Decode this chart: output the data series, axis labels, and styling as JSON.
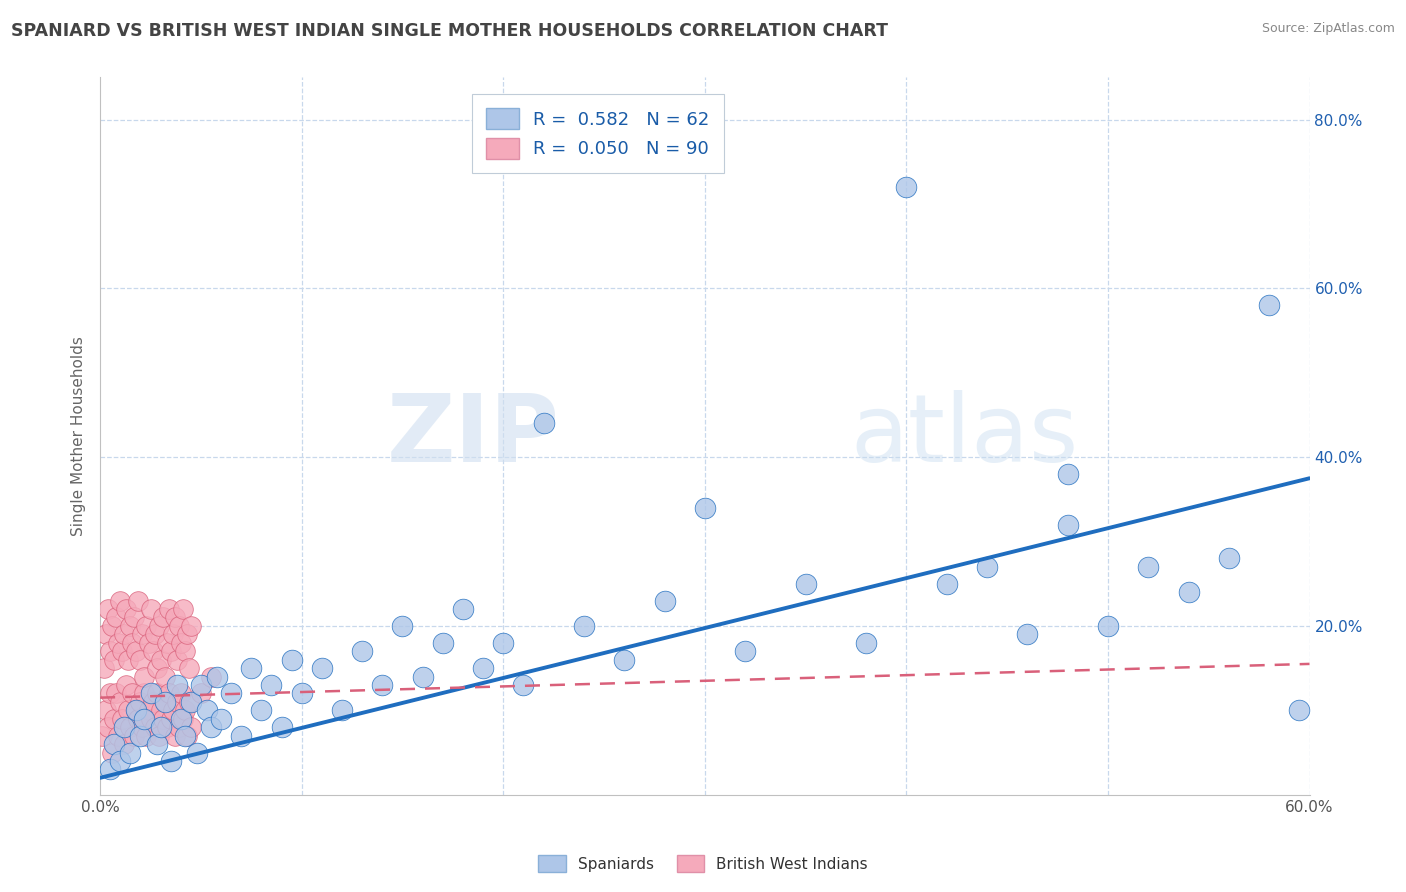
{
  "title": "SPANIARD VS BRITISH WEST INDIAN SINGLE MOTHER HOUSEHOLDS CORRELATION CHART",
  "source": "Source: ZipAtlas.com",
  "ylabel": "Single Mother Households",
  "xlim": [
    0.0,
    0.6
  ],
  "ylim": [
    0.0,
    0.85
  ],
  "legend_spaniards": "Spaniards",
  "legend_bwi": "British West Indians",
  "r_spaniard": "0.582",
  "n_spaniard": "62",
  "r_bwi": "0.050",
  "n_bwi": "90",
  "spaniard_color": "#aec6e8",
  "bwi_color": "#f5aabb",
  "spaniard_line_color": "#1f6dbf",
  "bwi_line_color": "#d9607a",
  "background_color": "#ffffff",
  "grid_color": "#c8d8ec",
  "title_color": "#444444",
  "watermark_zip": "ZIP",
  "watermark_atlas": "atlas",
  "sp_line_start_y": 0.02,
  "sp_line_end_y": 0.375,
  "bwi_line_start_y": 0.115,
  "bwi_line_end_y": 0.155,
  "sp_x": [
    0.005,
    0.007,
    0.01,
    0.012,
    0.015,
    0.018,
    0.02,
    0.022,
    0.025,
    0.028,
    0.03,
    0.032,
    0.035,
    0.038,
    0.04,
    0.042,
    0.045,
    0.048,
    0.05,
    0.053,
    0.055,
    0.058,
    0.06,
    0.065,
    0.07,
    0.075,
    0.08,
    0.085,
    0.09,
    0.095,
    0.1,
    0.11,
    0.12,
    0.13,
    0.14,
    0.15,
    0.16,
    0.17,
    0.18,
    0.19,
    0.2,
    0.21,
    0.22,
    0.24,
    0.26,
    0.28,
    0.3,
    0.32,
    0.35,
    0.38,
    0.4,
    0.42,
    0.44,
    0.46,
    0.48,
    0.5,
    0.52,
    0.54,
    0.56,
    0.58,
    0.595,
    0.48
  ],
  "sp_y": [
    0.03,
    0.06,
    0.04,
    0.08,
    0.05,
    0.1,
    0.07,
    0.09,
    0.12,
    0.06,
    0.08,
    0.11,
    0.04,
    0.13,
    0.09,
    0.07,
    0.11,
    0.05,
    0.13,
    0.1,
    0.08,
    0.14,
    0.09,
    0.12,
    0.07,
    0.15,
    0.1,
    0.13,
    0.08,
    0.16,
    0.12,
    0.15,
    0.1,
    0.17,
    0.13,
    0.2,
    0.14,
    0.18,
    0.22,
    0.15,
    0.18,
    0.13,
    0.44,
    0.2,
    0.16,
    0.23,
    0.34,
    0.17,
    0.25,
    0.18,
    0.72,
    0.25,
    0.27,
    0.19,
    0.32,
    0.2,
    0.27,
    0.24,
    0.28,
    0.58,
    0.1,
    0.38
  ],
  "bwi_x": [
    0.001,
    0.002,
    0.003,
    0.003,
    0.004,
    0.004,
    0.005,
    0.005,
    0.006,
    0.006,
    0.007,
    0.007,
    0.008,
    0.008,
    0.009,
    0.009,
    0.01,
    0.01,
    0.011,
    0.011,
    0.012,
    0.012,
    0.013,
    0.013,
    0.014,
    0.014,
    0.015,
    0.015,
    0.016,
    0.016,
    0.017,
    0.017,
    0.018,
    0.018,
    0.019,
    0.019,
    0.02,
    0.02,
    0.021,
    0.021,
    0.022,
    0.022,
    0.023,
    0.023,
    0.024,
    0.024,
    0.025,
    0.025,
    0.026,
    0.026,
    0.027,
    0.027,
    0.028,
    0.028,
    0.029,
    0.029,
    0.03,
    0.03,
    0.031,
    0.031,
    0.032,
    0.032,
    0.033,
    0.033,
    0.034,
    0.034,
    0.035,
    0.035,
    0.036,
    0.036,
    0.037,
    0.037,
    0.038,
    0.038,
    0.039,
    0.039,
    0.04,
    0.04,
    0.041,
    0.041,
    0.042,
    0.042,
    0.043,
    0.043,
    0.044,
    0.044,
    0.045,
    0.045,
    0.05,
    0.055
  ],
  "bwi_y": [
    0.07,
    0.15,
    0.1,
    0.19,
    0.08,
    0.22,
    0.12,
    0.17,
    0.05,
    0.2,
    0.09,
    0.16,
    0.12,
    0.21,
    0.07,
    0.18,
    0.11,
    0.23,
    0.09,
    0.17,
    0.06,
    0.19,
    0.13,
    0.22,
    0.1,
    0.16,
    0.08,
    0.2,
    0.12,
    0.18,
    0.07,
    0.21,
    0.1,
    0.17,
    0.09,
    0.23,
    0.11,
    0.16,
    0.08,
    0.19,
    0.12,
    0.14,
    0.07,
    0.2,
    0.1,
    0.18,
    0.09,
    0.22,
    0.11,
    0.17,
    0.08,
    0.19,
    0.12,
    0.15,
    0.07,
    0.2,
    0.1,
    0.16,
    0.09,
    0.21,
    0.11,
    0.14,
    0.08,
    0.18,
    0.12,
    0.22,
    0.09,
    0.17,
    0.1,
    0.19,
    0.07,
    0.21,
    0.11,
    0.16,
    0.08,
    0.2,
    0.12,
    0.18,
    0.09,
    0.22,
    0.1,
    0.17,
    0.07,
    0.19,
    0.11,
    0.15,
    0.08,
    0.2,
    0.12,
    0.14
  ]
}
